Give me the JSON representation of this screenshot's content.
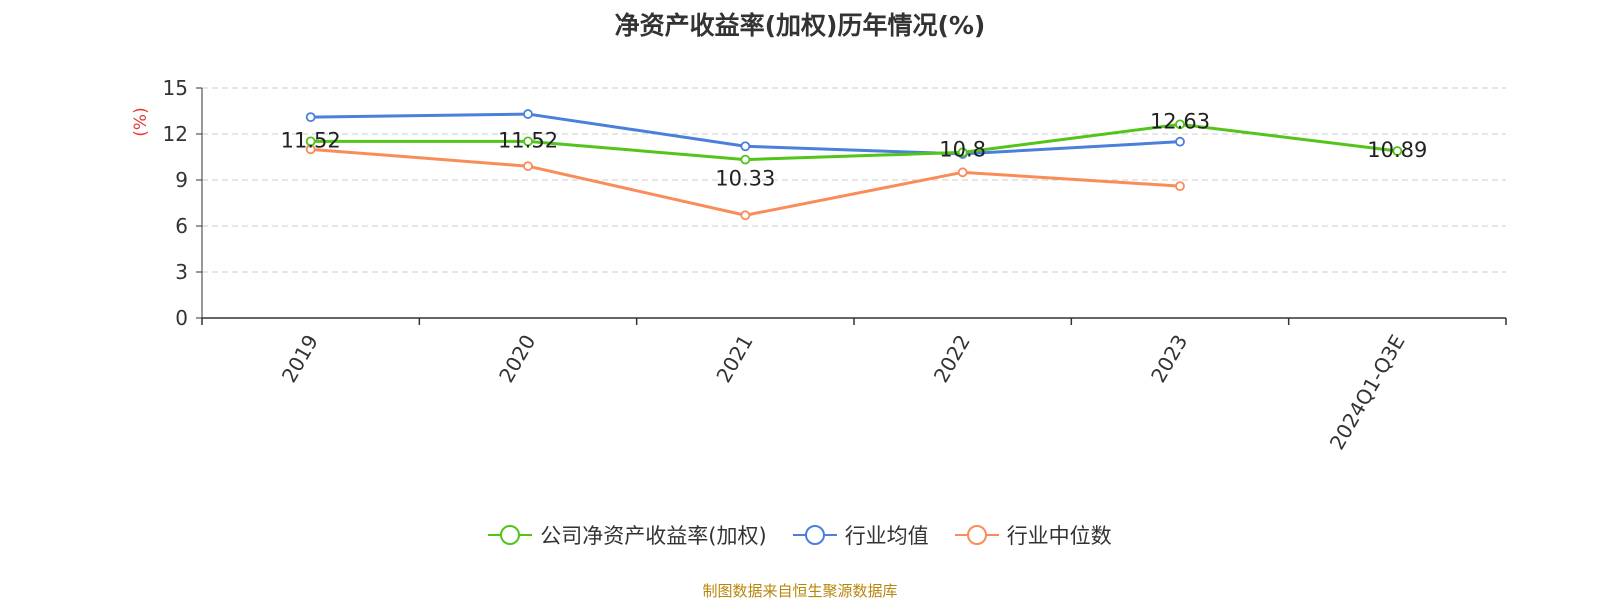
{
  "chart_data": {
    "type": "line",
    "title": "净资产收益率(加权)历年情况(%)",
    "ylabel": "(%)",
    "categories": [
      "2019",
      "2020",
      "2021",
      "2022",
      "2023",
      "2024Q1-Q3E"
    ],
    "yticks": [
      "0",
      "3",
      "6",
      "9",
      "12",
      "15"
    ],
    "ylim": [
      0,
      15
    ],
    "grid": true,
    "legend_position": "bottom",
    "series": [
      {
        "name": "公司净资产收益率(加权)",
        "color": "#52c41a",
        "values": [
          11.52,
          11.52,
          10.33,
          10.8,
          12.63,
          10.89
        ],
        "labels": [
          "11.52",
          "11.52",
          "10.33",
          "10.8",
          "12.63",
          "10.89"
        ]
      },
      {
        "name": "行业均值",
        "color": "#4a7fdc",
        "values": [
          13.1,
          13.3,
          11.2,
          10.7,
          11.5,
          null
        ]
      },
      {
        "name": "行业中位数",
        "color": "#fa8c5a",
        "values": [
          11.0,
          9.9,
          6.7,
          9.5,
          8.6,
          null
        ]
      }
    ]
  },
  "source": "制图数据来自恒生聚源数据库"
}
